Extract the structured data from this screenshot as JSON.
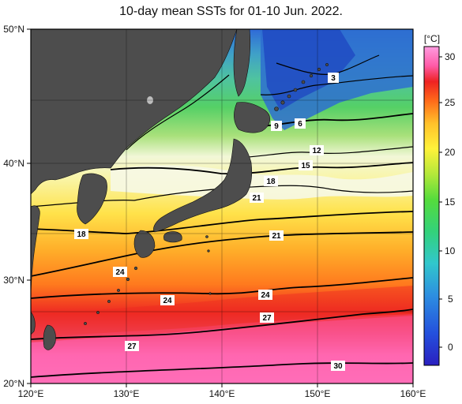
{
  "title": "10-day mean SSTs for 01-10 Jun. 2022.",
  "lon_axis": {
    "ticks": [
      "120°E",
      "130°E",
      "140°E",
      "150°E",
      "160°E"
    ]
  },
  "lat_axis": {
    "ticks": [
      "50°N",
      "40°N",
      "30°N",
      "20°N"
    ]
  },
  "colorbar": {
    "unit": "[°C]",
    "ticks": [
      "30",
      "25",
      "20",
      "15",
      "10",
      "5",
      "0"
    ],
    "range": [
      -3,
      32
    ]
  },
  "isotherm_labels": [
    "3",
    "9",
    "6",
    "12",
    "15",
    "18",
    "21",
    "21",
    "18",
    "24",
    "24",
    "24",
    "27",
    "27",
    "30"
  ],
  "colors": {
    "land": "#4d4d4d",
    "cold": "#1f3fb0",
    "warm": "#ff66aa",
    "frame": "#000000"
  }
}
